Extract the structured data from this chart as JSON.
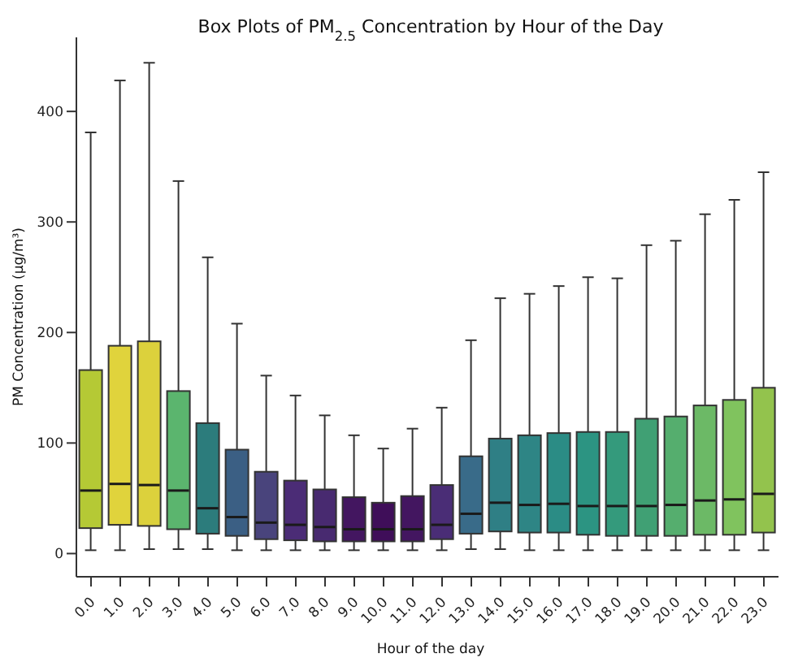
{
  "chart_data": {
    "type": "box",
    "title": "Box Plots of PM$_{2.5}$ Concentration by Hour of the Day",
    "xlabel": "Hour of the day",
    "ylabel": "PM Concentration (μg/m³)",
    "categories": [
      "0.0",
      "1.0",
      "2.0",
      "3.0",
      "4.0",
      "5.0",
      "6.0",
      "7.0",
      "8.0",
      "9.0",
      "10.0",
      "11.0",
      "12.0",
      "13.0",
      "14.0",
      "15.0",
      "16.0",
      "17.0",
      "18.0",
      "19.0",
      "20.0",
      "21.0",
      "22.0",
      "23.0"
    ],
    "colors": [
      "#b5c935",
      "#e0d33c",
      "#dcd13c",
      "#5bb56e",
      "#2c7c7c",
      "#3b5f84",
      "#49447c",
      "#4b2c76",
      "#482a70",
      "#431660",
      "#3f0e59",
      "#431660",
      "#4a2d76",
      "#396b89",
      "#2f7f85",
      "#2e8585",
      "#2b8c85",
      "#2c9482",
      "#349a7c",
      "#40a074",
      "#55ae6e",
      "#6cb966",
      "#80c35e",
      "#93c34d"
    ],
    "boxes": [
      {
        "low": 3,
        "q1": 23,
        "median": 57,
        "q3": 166,
        "high": 381
      },
      {
        "low": 3,
        "q1": 26,
        "median": 63,
        "q3": 188,
        "high": 428
      },
      {
        "low": 4,
        "q1": 25,
        "median": 62,
        "q3": 192,
        "high": 444
      },
      {
        "low": 4,
        "q1": 22,
        "median": 57,
        "q3": 147,
        "high": 337
      },
      {
        "low": 4,
        "q1": 18,
        "median": 41,
        "q3": 118,
        "high": 268
      },
      {
        "low": 3,
        "q1": 16,
        "median": 33,
        "q3": 94,
        "high": 208
      },
      {
        "low": 3,
        "q1": 13,
        "median": 28,
        "q3": 74,
        "high": 161
      },
      {
        "low": 3,
        "q1": 12,
        "median": 26,
        "q3": 66,
        "high": 143
      },
      {
        "low": 3,
        "q1": 11,
        "median": 24,
        "q3": 58,
        "high": 125
      },
      {
        "low": 3,
        "q1": 11,
        "median": 22,
        "q3": 51,
        "high": 107
      },
      {
        "low": 3,
        "q1": 11,
        "median": 22,
        "q3": 46,
        "high": 95
      },
      {
        "low": 3,
        "q1": 11,
        "median": 22,
        "q3": 52,
        "high": 113
      },
      {
        "low": 3,
        "q1": 13,
        "median": 26,
        "q3": 62,
        "high": 132
      },
      {
        "low": 4,
        "q1": 18,
        "median": 36,
        "q3": 88,
        "high": 193
      },
      {
        "low": 4,
        "q1": 20,
        "median": 46,
        "q3": 104,
        "high": 231
      },
      {
        "low": 3,
        "q1": 19,
        "median": 44,
        "q3": 107,
        "high": 235
      },
      {
        "low": 3,
        "q1": 19,
        "median": 45,
        "q3": 109,
        "high": 242
      },
      {
        "low": 3,
        "q1": 17,
        "median": 43,
        "q3": 110,
        "high": 250
      },
      {
        "low": 3,
        "q1": 16,
        "median": 43,
        "q3": 110,
        "high": 249
      },
      {
        "low": 3,
        "q1": 16,
        "median": 43,
        "q3": 122,
        "high": 279
      },
      {
        "low": 3,
        "q1": 16,
        "median": 44,
        "q3": 124,
        "high": 283
      },
      {
        "low": 3,
        "q1": 17,
        "median": 48,
        "q3": 134,
        "high": 307
      },
      {
        "low": 3,
        "q1": 17,
        "median": 49,
        "q3": 139,
        "high": 320
      },
      {
        "low": 3,
        "q1": 19,
        "median": 54,
        "q3": 150,
        "high": 345
      }
    ],
    "ylim": [
      -21,
      467
    ],
    "yticks": [
      0,
      100,
      200,
      300,
      400
    ]
  }
}
